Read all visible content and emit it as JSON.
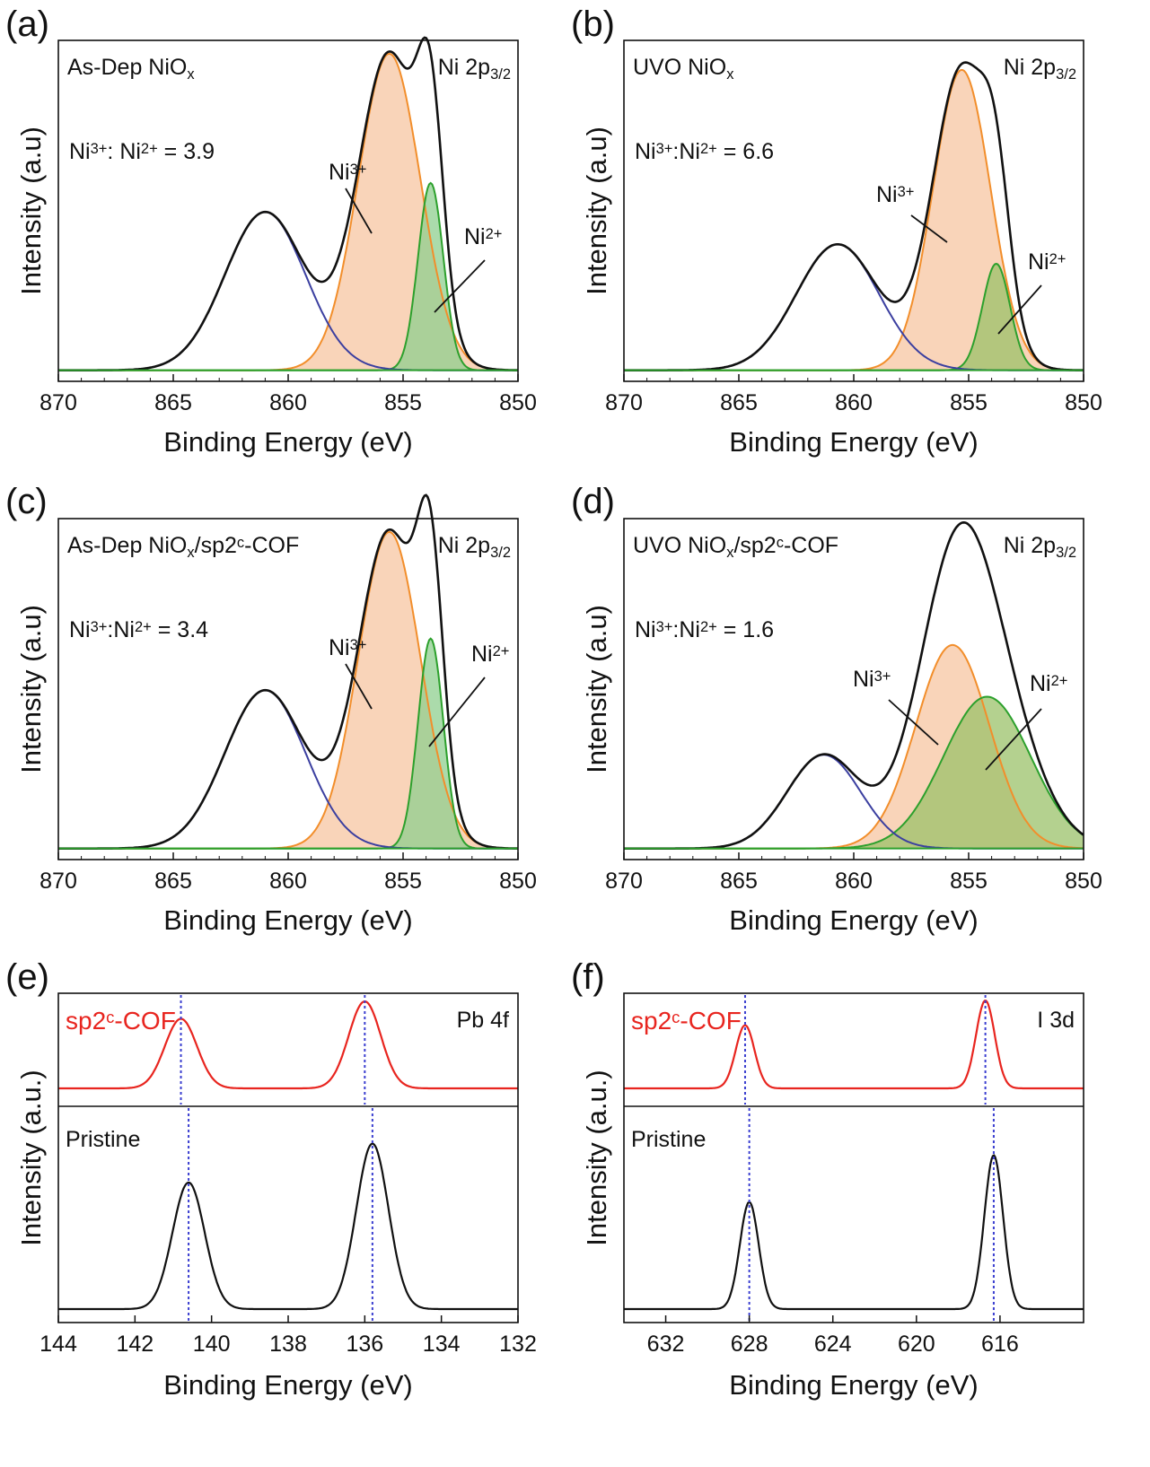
{
  "chart_data": [
    {
      "panel": "(a)",
      "type": "line",
      "sample": "As-Dep NiOx",
      "sample_color": "#111111",
      "region": "Ni 2p3/2",
      "ratio_text": "Ni3+: Ni2+ = 3.9",
      "ratio_color": "#2b3a9e",
      "xlabel": "Binding Energy (eV)",
      "ylabel": "Intensity (a.u)",
      "xlim": [
        870,
        850
      ],
      "xticks": [
        870,
        865,
        860,
        855,
        850
      ],
      "peaks": [
        {
          "name": "Ni3+",
          "center": 855.6,
          "height": 0.98,
          "width": 1.35,
          "color": "#f28e2b",
          "fill": "#f7c6a1"
        },
        {
          "name": "Ni2+",
          "center": 853.8,
          "height": 0.58,
          "width": 0.55,
          "color": "#2ca02c",
          "fill": "#8fcf8f"
        },
        {
          "name": "satellite",
          "center": 861.0,
          "height": 0.49,
          "width": 1.75,
          "color": "#3b3fa0",
          "fill": ""
        }
      ]
    },
    {
      "panel": "(b)",
      "type": "line",
      "sample": "UVO NiOx",
      "sample_color": "#111111",
      "region": "Ni 2p3/2",
      "ratio_text": "Ni3+:Ni2+ = 6.6",
      "ratio_color": "#2b3a9e",
      "xlabel": "Binding Energy (eV)",
      "ylabel": "Intensity (a.u)",
      "xlim": [
        870,
        850
      ],
      "xticks": [
        870,
        865,
        860,
        855,
        850
      ],
      "peaks": [
        {
          "name": "Ni3+",
          "center": 855.3,
          "height": 0.93,
          "width": 1.25,
          "color": "#f28e2b",
          "fill": "#f7c6a1"
        },
        {
          "name": "Ni2+",
          "center": 853.8,
          "height": 0.33,
          "width": 0.6,
          "color": "#2ca02c",
          "fill": "#9bc26a"
        },
        {
          "name": "satellite",
          "center": 860.7,
          "height": 0.39,
          "width": 1.8,
          "color": "#3b3fa0",
          "fill": ""
        }
      ]
    },
    {
      "panel": "(c)",
      "type": "line",
      "sample": "As-Dep NiOx/sp2c-COF",
      "sample_color": "#e8251f",
      "region": "Ni 2p3/2",
      "ratio_text": "Ni3+:Ni2+ = 3.4",
      "ratio_color": "#2b3a9e",
      "xlabel": "Binding Energy (eV)",
      "ylabel": "Intensity (a.u)",
      "xlim": [
        870,
        850
      ],
      "xticks": [
        870,
        865,
        860,
        855,
        850
      ],
      "peaks": [
        {
          "name": "Ni3+",
          "center": 855.6,
          "height": 0.98,
          "width": 1.35,
          "color": "#f28e2b",
          "fill": "#f7c6a1"
        },
        {
          "name": "Ni2+",
          "center": 853.8,
          "height": 0.65,
          "width": 0.55,
          "color": "#2ca02c",
          "fill": "#8fcf8f"
        },
        {
          "name": "satellite",
          "center": 861.0,
          "height": 0.49,
          "width": 1.75,
          "color": "#3b3fa0",
          "fill": ""
        }
      ]
    },
    {
      "panel": "(d)",
      "type": "line",
      "sample": "UVO NiOx/sp2c-COF",
      "sample_color": "#e8251f",
      "region": "Ni 2p3/2",
      "ratio_text": "Ni3+:Ni2+ = 1.6",
      "ratio_color": "#2b3a9e",
      "xlabel": "Binding Energy (eV)",
      "ylabel": "Intensity (a.u)",
      "xlim": [
        870,
        850
      ],
      "xticks": [
        870,
        865,
        860,
        855,
        850
      ],
      "peaks": [
        {
          "name": "Ni3+",
          "center": 855.7,
          "height": 0.63,
          "width": 1.6,
          "color": "#f28e2b",
          "fill": "#f7c6a1"
        },
        {
          "name": "Ni2+",
          "center": 854.2,
          "height": 0.47,
          "width": 1.9,
          "color": "#2ca02c",
          "fill": "#9bc26a"
        },
        {
          "name": "satellite",
          "center": 861.3,
          "height": 0.29,
          "width": 1.6,
          "color": "#3b3fa0",
          "fill": ""
        }
      ]
    },
    {
      "panel": "(e)",
      "type": "line",
      "region": "Pb 4f",
      "xlabel": "Binding Energy (eV)",
      "ylabel": "Intensity (a.u.)",
      "xlim": [
        144,
        132
      ],
      "xticks": [
        144,
        142,
        140,
        138,
        136,
        134,
        132
      ],
      "series": [
        {
          "name": "sp2c-COF",
          "color": "#e8251f",
          "peaks": [
            {
              "center": 140.8,
              "height": 0.76,
              "width": 0.42
            },
            {
              "center": 136.0,
              "height": 0.95,
              "width": 0.42
            }
          ],
          "markers": [
            140.8,
            136.0
          ]
        },
        {
          "name": "Pristine",
          "color": "#111111",
          "peaks": [
            {
              "center": 140.6,
              "height": 0.65,
              "width": 0.42
            },
            {
              "center": 135.8,
              "height": 0.85,
              "width": 0.42
            }
          ],
          "markers": [
            140.6,
            135.8
          ]
        }
      ]
    },
    {
      "panel": "(f)",
      "type": "line",
      "region": "I 3d",
      "xlabel": "Binding Energy (eV)",
      "ylabel": "Intensity (a.u.)",
      "xlim": [
        634,
        612
      ],
      "xticks": [
        632,
        628,
        624,
        620,
        616
      ],
      "series": [
        {
          "name": "sp2c-COF",
          "color": "#e8251f",
          "peaks": [
            {
              "center": 628.2,
              "height": 0.69,
              "width": 0.45
            },
            {
              "center": 616.7,
              "height": 0.96,
              "width": 0.45
            }
          ],
          "markers": [
            628.2,
            616.7
          ]
        },
        {
          "name": "Pristine",
          "color": "#111111",
          "peaks": [
            {
              "center": 628.0,
              "height": 0.55,
              "width": 0.45
            },
            {
              "center": 616.3,
              "height": 0.79,
              "width": 0.45
            }
          ],
          "markers": [
            628.0,
            616.3
          ]
        }
      ]
    }
  ]
}
